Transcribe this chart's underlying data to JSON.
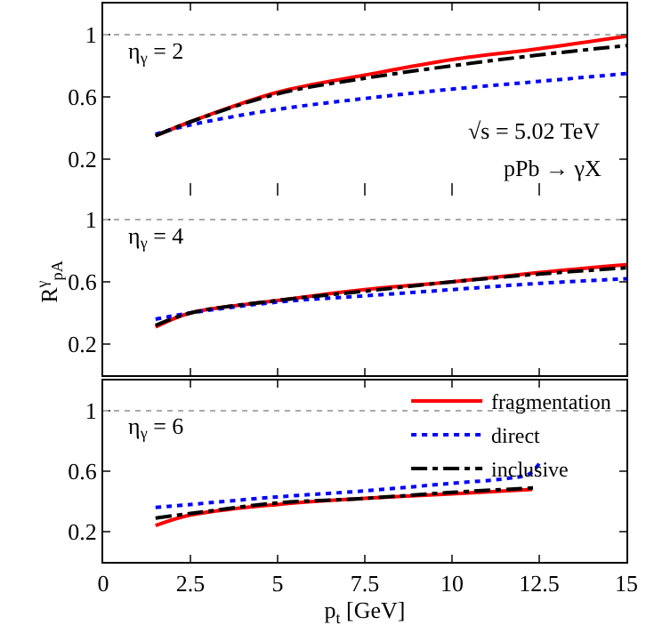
{
  "chart_data": [
    {
      "type": "line",
      "x": [
        1.5,
        2.5,
        5,
        7.5,
        10,
        12.5,
        15
      ],
      "xlim": [
        0,
        15
      ],
      "xticks": [
        0,
        2.5,
        5,
        7.5,
        10,
        12.5,
        15
      ],
      "ylim": [
        0,
        1.2
      ],
      "yticks": [
        0.2,
        0.6,
        1
      ],
      "grid": false,
      "legend": false,
      "tick_labels": "y",
      "ref_lines": [
        {
          "axis": "y",
          "value": 1,
          "color": "#aaaaaa",
          "line_style": "dotted"
        }
      ],
      "annotations": [
        "η$_{γ}$ = 2",
        "√s = 5.02 TeV",
        "pPb → γX"
      ],
      "series": [
        {
          "color": "#ff0000",
          "line_style": "solid",
          "values": [
            0.35,
            0.44,
            0.63,
            0.74,
            0.84,
            0.91,
            0.99
          ]
        },
        {
          "color": "#0000ff",
          "line_style": "dotted",
          "values": [
            0.36,
            0.42,
            0.52,
            0.59,
            0.65,
            0.7,
            0.75
          ]
        },
        {
          "color": "#000000",
          "line_style": "dashed",
          "values": [
            0.35,
            0.44,
            0.62,
            0.72,
            0.8,
            0.87,
            0.93
          ]
        }
      ]
    },
    {
      "type": "line",
      "x": [
        1.5,
        2.5,
        5,
        7.5,
        10,
        12.5,
        15
      ],
      "xlim": [
        0,
        15
      ],
      "xticks": [
        0,
        2.5,
        5,
        7.5,
        10,
        12.5,
        15
      ],
      "ylim": [
        0,
        1.2
      ],
      "yticks": [
        0.2,
        0.6,
        1
      ],
      "grid": false,
      "legend": false,
      "tick_labels": "y",
      "ylabel": "R$^{γ}$$_{pA}$",
      "ref_lines": [
        {
          "axis": "y",
          "value": 1,
          "color": "#aaaaaa",
          "line_style": "dotted"
        }
      ],
      "annotations": [
        "η$_{γ}$ = 4"
      ],
      "series": [
        {
          "color": "#ff0000",
          "line_style": "solid",
          "values": [
            0.31,
            0.4,
            0.48,
            0.55,
            0.6,
            0.66,
            0.71
          ]
        },
        {
          "color": "#0000ff",
          "line_style": "dotted",
          "values": [
            0.36,
            0.4,
            0.47,
            0.51,
            0.55,
            0.59,
            0.62
          ]
        },
        {
          "color": "#000000",
          "line_style": "dashed",
          "values": [
            0.32,
            0.4,
            0.48,
            0.54,
            0.6,
            0.65,
            0.69
          ]
        }
      ]
    },
    {
      "type": "line",
      "xlim": [
        0,
        15
      ],
      "xticks": [
        0,
        2.5,
        5,
        7.5,
        10,
        12.5,
        15
      ],
      "ylim": [
        0,
        1.2
      ],
      "yticks": [
        0.2,
        0.6,
        1
      ],
      "grid": false,
      "legend": "top right",
      "xlabel": "p$_{t}$ [GeV]",
      "ref_lines": [
        {
          "axis": "y",
          "value": 1,
          "color": "#aaaaaa",
          "line_style": "dotted"
        }
      ],
      "annotations": [
        "η$_{γ}$ = 6"
      ],
      "series": [
        {
          "name": "fragmentation",
          "color": "#ff0000",
          "line_style": "solid",
          "x": [
            1.5,
            2.5,
            5,
            7.5,
            10,
            12.3
          ],
          "values": [
            0.24,
            0.31,
            0.38,
            0.42,
            0.45,
            0.48
          ]
        },
        {
          "name": "direct",
          "color": "#0000ff",
          "line_style": "dotted",
          "x": [
            1.5,
            2.5,
            5,
            7.5,
            10,
            11.5,
            12.2,
            12.5
          ],
          "values": [
            0.36,
            0.38,
            0.43,
            0.47,
            0.52,
            0.55,
            0.58,
            0.65
          ]
        },
        {
          "name": "inclusive",
          "color": "#000000",
          "line_style": "dashed",
          "x": [
            1.5,
            2.5,
            5,
            7.5,
            10,
            12.4
          ],
          "values": [
            0.29,
            0.32,
            0.39,
            0.42,
            0.46,
            0.49
          ]
        }
      ]
    }
  ]
}
